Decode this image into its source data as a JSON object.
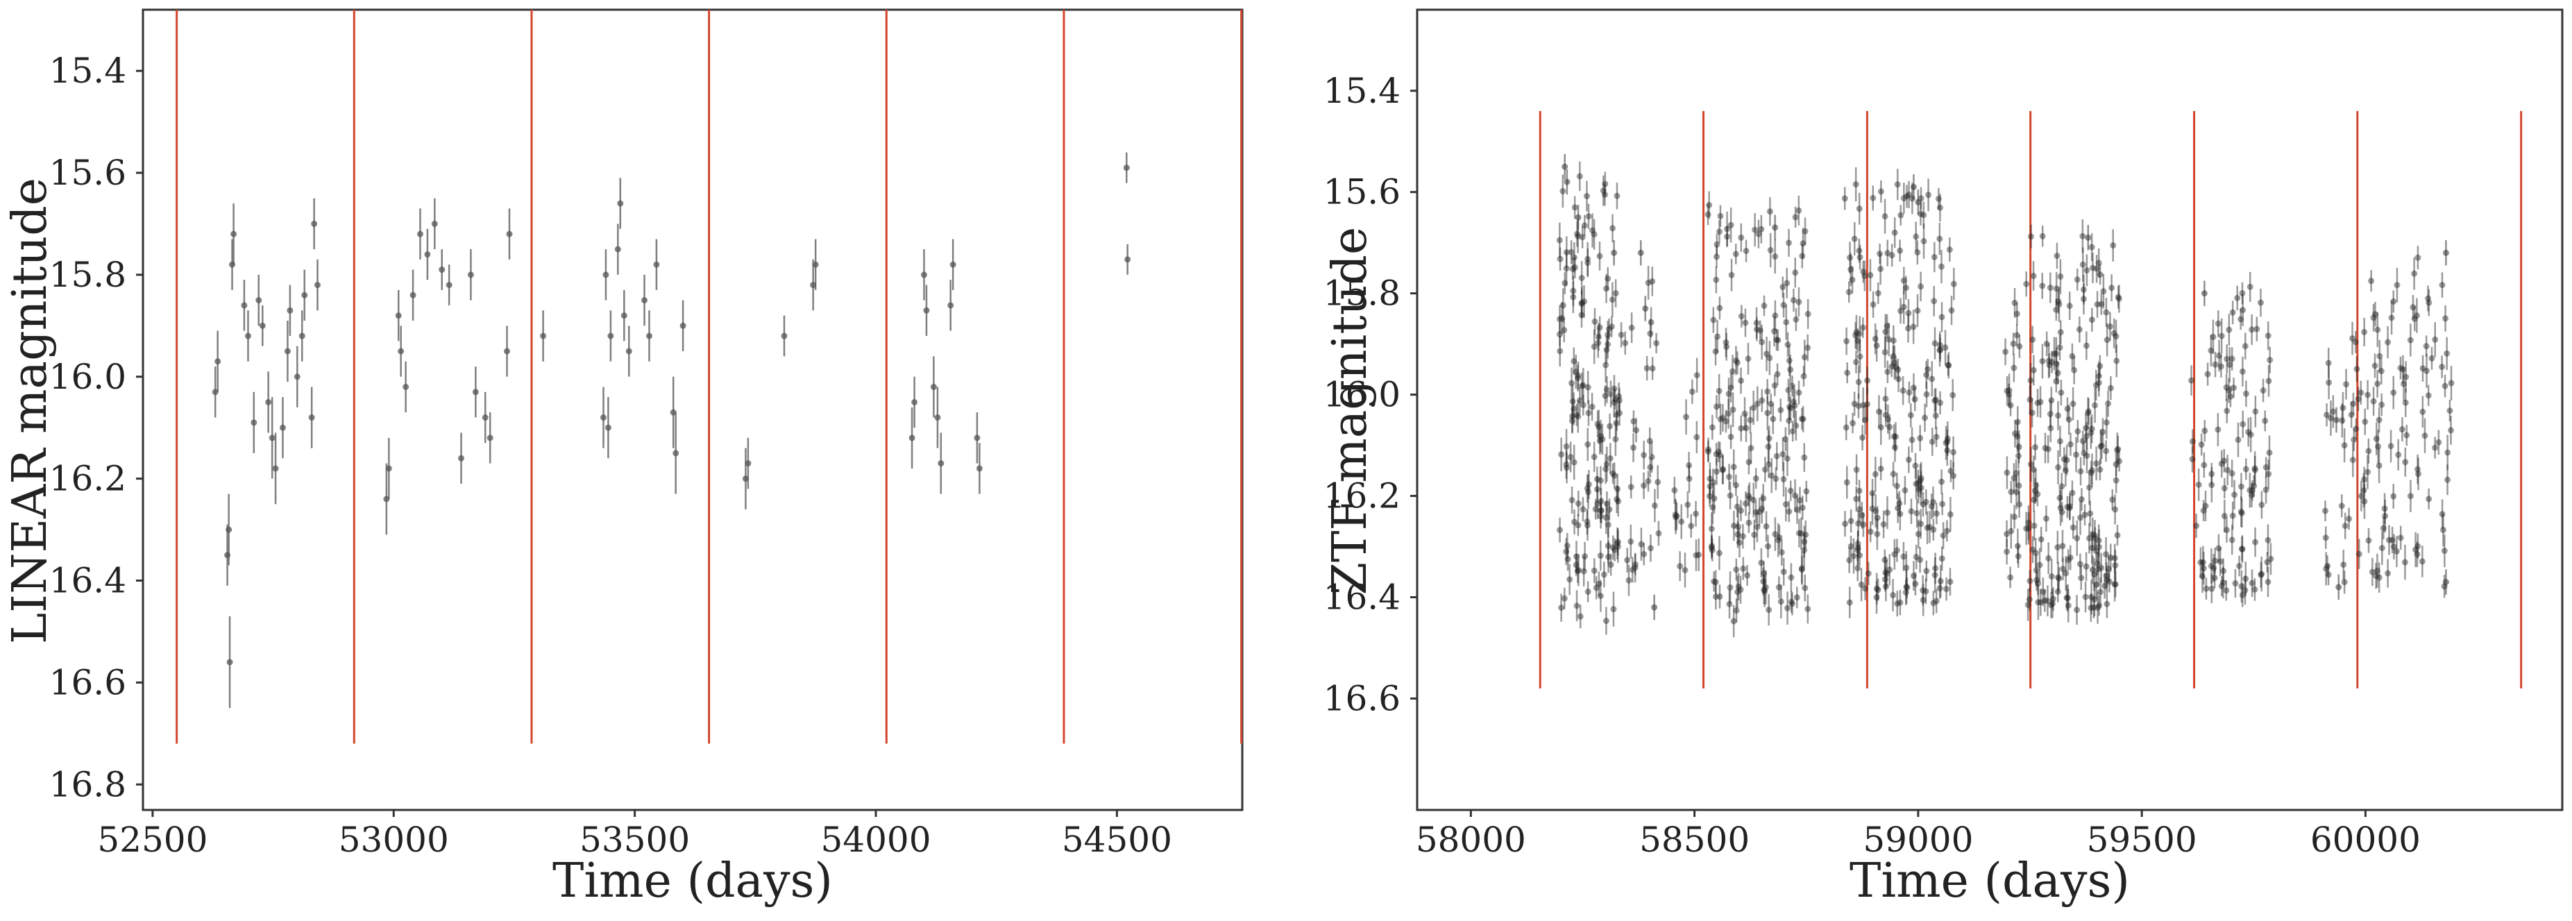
{
  "chart_data": [
    {
      "type": "scatter",
      "title": "",
      "xlabel": "Time (days)",
      "ylabel": "LINEAR magnitude",
      "xlim": [
        52480,
        54760
      ],
      "ylim": [
        16.85,
        15.28
      ],
      "y_inverted": true,
      "grid": false,
      "x_ticks": [
        52500,
        53000,
        53500,
        54000,
        54500
      ],
      "x_tick_labels": [
        "52500",
        "53000",
        "53500",
        "54000",
        "54500"
      ],
      "y_ticks": [
        15.4,
        15.6,
        15.8,
        16.0,
        16.2,
        16.4,
        16.6,
        16.8
      ],
      "y_tick_labels": [
        "15.4",
        "15.6",
        "15.8",
        "16.0",
        "16.2",
        "16.4",
        "16.6",
        "16.8"
      ],
      "vlines": {
        "x": [
          52550,
          52918,
          53286,
          53654,
          54022,
          54390,
          54758
        ],
        "color": "#d2462c",
        "y_range": [
          15.28,
          16.72
        ]
      },
      "series": [
        {
          "marker_color": "#555555",
          "points": [
            {
              "x": 52630,
              "y": 16.03,
              "err": 0.05
            },
            {
              "x": 52635,
              "y": 15.97,
              "err": 0.06
            },
            {
              "x": 52655,
              "y": 16.35,
              "err": 0.06
            },
            {
              "x": 52658,
              "y": 16.3,
              "err": 0.07
            },
            {
              "x": 52660,
              "y": 16.56,
              "err": 0.09
            },
            {
              "x": 52665,
              "y": 15.78,
              "err": 0.05
            },
            {
              "x": 52668,
              "y": 15.72,
              "err": 0.06
            },
            {
              "x": 52690,
              "y": 15.86,
              "err": 0.05
            },
            {
              "x": 52698,
              "y": 15.92,
              "err": 0.05
            },
            {
              "x": 52710,
              "y": 16.09,
              "err": 0.06
            },
            {
              "x": 52720,
              "y": 15.85,
              "err": 0.05
            },
            {
              "x": 52728,
              "y": 15.9,
              "err": 0.04
            },
            {
              "x": 52740,
              "y": 16.05,
              "err": 0.06
            },
            {
              "x": 52748,
              "y": 16.12,
              "err": 0.08
            },
            {
              "x": 52755,
              "y": 16.18,
              "err": 0.07
            },
            {
              "x": 52770,
              "y": 16.1,
              "err": 0.06
            },
            {
              "x": 52780,
              "y": 15.95,
              "err": 0.06
            },
            {
              "x": 52785,
              "y": 15.87,
              "err": 0.05
            },
            {
              "x": 52800,
              "y": 16.0,
              "err": 0.06
            },
            {
              "x": 52810,
              "y": 15.92,
              "err": 0.05
            },
            {
              "x": 52815,
              "y": 15.84,
              "err": 0.05
            },
            {
              "x": 52830,
              "y": 16.08,
              "err": 0.06
            },
            {
              "x": 52835,
              "y": 15.7,
              "err": 0.05
            },
            {
              "x": 52842,
              "y": 15.82,
              "err": 0.05
            },
            {
              "x": 52985,
              "y": 16.24,
              "err": 0.07
            },
            {
              "x": 52990,
              "y": 16.18,
              "err": 0.06
            },
            {
              "x": 53010,
              "y": 15.88,
              "err": 0.05
            },
            {
              "x": 53015,
              "y": 15.95,
              "err": 0.05
            },
            {
              "x": 53025,
              "y": 16.02,
              "err": 0.05
            },
            {
              "x": 53040,
              "y": 15.84,
              "err": 0.05
            },
            {
              "x": 53055,
              "y": 15.72,
              "err": 0.05
            },
            {
              "x": 53070,
              "y": 15.76,
              "err": 0.05
            },
            {
              "x": 53085,
              "y": 15.7,
              "err": 0.05
            },
            {
              "x": 53100,
              "y": 15.79,
              "err": 0.04
            },
            {
              "x": 53115,
              "y": 15.82,
              "err": 0.04
            },
            {
              "x": 53140,
              "y": 16.16,
              "err": 0.05
            },
            {
              "x": 53160,
              "y": 15.8,
              "err": 0.05
            },
            {
              "x": 53170,
              "y": 16.03,
              "err": 0.05
            },
            {
              "x": 53190,
              "y": 16.08,
              "err": 0.05
            },
            {
              "x": 53200,
              "y": 16.12,
              "err": 0.05
            },
            {
              "x": 53235,
              "y": 15.95,
              "err": 0.05
            },
            {
              "x": 53240,
              "y": 15.72,
              "err": 0.05
            },
            {
              "x": 53310,
              "y": 15.92,
              "err": 0.05
            },
            {
              "x": 53435,
              "y": 16.08,
              "err": 0.06
            },
            {
              "x": 53440,
              "y": 15.8,
              "err": 0.05
            },
            {
              "x": 53445,
              "y": 16.1,
              "err": 0.06
            },
            {
              "x": 53450,
              "y": 15.92,
              "err": 0.05
            },
            {
              "x": 53465,
              "y": 15.75,
              "err": 0.05
            },
            {
              "x": 53470,
              "y": 15.66,
              "err": 0.05
            },
            {
              "x": 53478,
              "y": 15.88,
              "err": 0.05
            },
            {
              "x": 53488,
              "y": 15.95,
              "err": 0.05
            },
            {
              "x": 53520,
              "y": 15.85,
              "err": 0.05
            },
            {
              "x": 53530,
              "y": 15.92,
              "err": 0.05
            },
            {
              "x": 53545,
              "y": 15.78,
              "err": 0.05
            },
            {
              "x": 53580,
              "y": 16.07,
              "err": 0.07
            },
            {
              "x": 53585,
              "y": 16.15,
              "err": 0.08
            },
            {
              "x": 53600,
              "y": 15.9,
              "err": 0.05
            },
            {
              "x": 53730,
              "y": 16.2,
              "err": 0.06
            },
            {
              "x": 53735,
              "y": 16.17,
              "err": 0.05
            },
            {
              "x": 53810,
              "y": 15.92,
              "err": 0.04
            },
            {
              "x": 53870,
              "y": 15.82,
              "err": 0.05
            },
            {
              "x": 53875,
              "y": 15.78,
              "err": 0.05
            },
            {
              "x": 54075,
              "y": 16.12,
              "err": 0.06
            },
            {
              "x": 54080,
              "y": 16.05,
              "err": 0.05
            },
            {
              "x": 54100,
              "y": 15.8,
              "err": 0.05
            },
            {
              "x": 54105,
              "y": 15.87,
              "err": 0.05
            },
            {
              "x": 54120,
              "y": 16.02,
              "err": 0.06
            },
            {
              "x": 54128,
              "y": 16.08,
              "err": 0.06
            },
            {
              "x": 54135,
              "y": 16.17,
              "err": 0.06
            },
            {
              "x": 54155,
              "y": 15.86,
              "err": 0.05
            },
            {
              "x": 54160,
              "y": 15.78,
              "err": 0.05
            },
            {
              "x": 54210,
              "y": 16.12,
              "err": 0.05
            },
            {
              "x": 54215,
              "y": 16.18,
              "err": 0.05
            },
            {
              "x": 54520,
              "y": 15.59,
              "err": 0.03
            },
            {
              "x": 54522,
              "y": 15.77,
              "err": 0.03
            }
          ]
        }
      ]
    },
    {
      "type": "scatter",
      "title": "",
      "xlabel": "Time (days)",
      "ylabel": "ZTF magnitude",
      "xlim": [
        57880,
        60440
      ],
      "ylim": [
        16.82,
        15.24
      ],
      "y_inverted": true,
      "grid": false,
      "x_ticks": [
        58000,
        58500,
        59000,
        59500,
        60000
      ],
      "x_tick_labels": [
        "58000",
        "58500",
        "59000",
        "59500",
        "60000"
      ],
      "y_ticks": [
        15.4,
        15.6,
        15.8,
        16.0,
        16.2,
        16.4,
        16.6
      ],
      "y_tick_labels": [
        "15.4",
        "15.6",
        "15.8",
        "16.0",
        "16.2",
        "16.4",
        "16.6"
      ],
      "vlines": {
        "x": [
          58155,
          58520,
          58886,
          59251,
          59617,
          59982,
          60348
        ],
        "color": "#d2462c",
        "y_range": [
          15.44,
          16.58
        ]
      },
      "seasons": [
        {
          "start": 58198,
          "end": 58330,
          "ymin": 15.55,
          "ymax": 16.45,
          "n": 160
        },
        {
          "start": 58330,
          "end": 58420,
          "ymin": 15.75,
          "ymax": 16.4,
          "n": 35
        },
        {
          "start": 58450,
          "end": 58510,
          "ymin": 15.95,
          "ymax": 16.35,
          "n": 18
        },
        {
          "start": 58530,
          "end": 58760,
          "ymin": 15.62,
          "ymax": 16.45,
          "n": 210
        },
        {
          "start": 58835,
          "end": 59080,
          "ymin": 15.58,
          "ymax": 16.42,
          "n": 230
        },
        {
          "start": 59195,
          "end": 59230,
          "ymin": 15.8,
          "ymax": 16.38,
          "n": 30
        },
        {
          "start": 59240,
          "end": 59450,
          "ymin": 15.68,
          "ymax": 16.43,
          "n": 210
        },
        {
          "start": 59610,
          "end": 59790,
          "ymin": 15.78,
          "ymax": 16.4,
          "n": 110
        },
        {
          "start": 59910,
          "end": 59990,
          "ymin": 15.85,
          "ymax": 16.38,
          "n": 30
        },
        {
          "start": 59990,
          "end": 60200,
          "ymin": 15.72,
          "ymax": 16.38,
          "n": 95
        }
      ],
      "series": [
        {
          "marker_color": "#333333",
          "points": [
            {
              "x": 58210,
              "y": 15.55
            },
            {
              "x": 58215,
              "y": 15.58
            },
            {
              "x": 58240,
              "y": 15.65
            },
            {
              "x": 58320,
              "y": 15.72
            },
            {
              "x": 58380,
              "y": 15.72
            },
            {
              "x": 58390,
              "y": 15.83
            },
            {
              "x": 58680,
              "y": 15.67
            },
            {
              "x": 58990,
              "y": 15.59
            },
            {
              "x": 59000,
              "y": 15.62
            },
            {
              "x": 59380,
              "y": 15.69
            },
            {
              "x": 59640,
              "y": 15.8
            },
            {
              "x": 60180,
              "y": 15.72
            },
            {
              "x": 59935,
              "y": 16.05
            },
            {
              "x": 59940,
              "y": 16.38
            },
            {
              "x": 60180,
              "y": 16.37
            },
            {
              "x": 58410,
              "y": 16.42
            }
          ]
        }
      ]
    }
  ]
}
